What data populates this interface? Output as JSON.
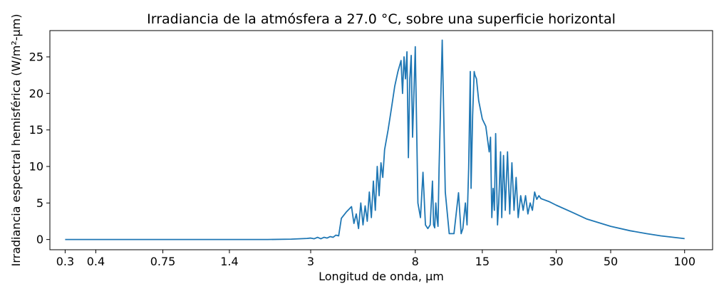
{
  "chart_data": {
    "type": "line",
    "title": "Irradiancia de la atmósfera a 27.0 °C, sobre una superficie horizontal",
    "xlabel": "Longitud de onda, μm",
    "ylabel": "Irradiancia espectral hemisférica (W/m²-μm)",
    "xscale": "log",
    "xlim": [
      0.26,
      130
    ],
    "ylim": [
      -1.4,
      28.6
    ],
    "xticks": [
      0.3,
      0.4,
      0.75,
      1.4,
      3,
      8,
      15,
      30,
      50,
      100
    ],
    "xtick_labels": [
      "0.3",
      "0.4",
      "0.75",
      "1.4",
      "3",
      "8",
      "15",
      "30",
      "50",
      "100"
    ],
    "yticks": [
      0,
      5,
      10,
      15,
      20,
      25
    ],
    "ytick_labels": [
      "0",
      "5",
      "10",
      "15",
      "20",
      "25"
    ],
    "grid": false,
    "color": "#1f77b4",
    "series": [
      {
        "x": [
          0.3,
          0.5,
          1.0,
          2.0,
          2.5,
          2.9,
          3.0,
          3.1,
          3.2,
          3.3,
          3.4,
          3.5,
          3.6,
          3.7,
          3.8,
          3.9,
          4.0,
          4.2,
          4.4,
          4.5,
          4.6,
          4.7,
          4.8,
          4.9,
          5.0,
          5.1,
          5.2,
          5.3,
          5.4,
          5.5,
          5.6,
          5.7,
          5.8,
          5.9,
          6.0,
          6.2,
          6.4,
          6.6,
          6.8,
          7.0,
          7.1,
          7.2,
          7.3,
          7.4,
          7.5,
          7.6,
          7.7,
          7.8,
          7.9,
          8.0,
          8.2,
          8.4,
          8.6,
          8.8,
          9.0,
          9.2,
          9.4,
          9.5,
          9.6,
          9.7,
          9.8,
          9.9,
          10.0,
          10.3,
          10.6,
          11.0,
          11.5,
          12.0,
          12.3,
          12.5,
          12.8,
          13.0,
          13.2,
          13.4,
          13.5,
          13.7,
          13.9,
          14.0,
          14.2,
          14.5,
          15.0,
          15.5,
          16.0,
          16.2,
          16.4,
          16.6,
          16.8,
          17.0,
          17.3,
          17.5,
          17.8,
          18.0,
          18.3,
          18.6,
          19.0,
          19.4,
          19.8,
          20.2,
          20.6,
          21.0,
          21.5,
          22.0,
          22.5,
          23.0,
          23.5,
          24.0,
          24.5,
          25.0,
          25.5,
          26.0,
          28,
          30,
          35,
          40,
          50,
          60,
          70,
          80,
          100
        ],
        "y": [
          0.0,
          0.0,
          0.0,
          0.0,
          0.05,
          0.15,
          0.2,
          0.1,
          0.3,
          0.1,
          0.3,
          0.2,
          0.4,
          0.3,
          0.6,
          0.5,
          2.9,
          3.8,
          4.5,
          2.2,
          3.5,
          1.5,
          5.0,
          2.0,
          4.6,
          2.5,
          6.5,
          3.0,
          8.0,
          4.0,
          10.0,
          6.0,
          10.5,
          8.5,
          12.3,
          15.0,
          18.0,
          21.0,
          23.0,
          24.5,
          20.0,
          25.0,
          22.0,
          25.7,
          11.2,
          22.0,
          25.2,
          14.0,
          20.0,
          26.4,
          5.0,
          3.0,
          9.2,
          2.0,
          1.5,
          2.0,
          8.0,
          2.0,
          1.6,
          5.0,
          3.0,
          1.8,
          9.7,
          27.3,
          6.5,
          0.8,
          0.8,
          6.4,
          0.8,
          1.5,
          5.0,
          2.0,
          9.8,
          23.0,
          7.0,
          17.0,
          23.0,
          22.5,
          22.0,
          19.0,
          16.5,
          15.5,
          12.0,
          14.0,
          3.0,
          7.0,
          4.0,
          14.5,
          2.0,
          5.0,
          12.0,
          3.0,
          11.5,
          4.0,
          12.0,
          3.5,
          10.5,
          4.0,
          8.5,
          3.0,
          6.0,
          4.0,
          6.0,
          3.5,
          5.0,
          4.0,
          6.5,
          5.5,
          6.0,
          5.6,
          5.2,
          4.7,
          3.7,
          2.8,
          1.8,
          1.2,
          0.8,
          0.5,
          0.12
        ]
      }
    ]
  }
}
